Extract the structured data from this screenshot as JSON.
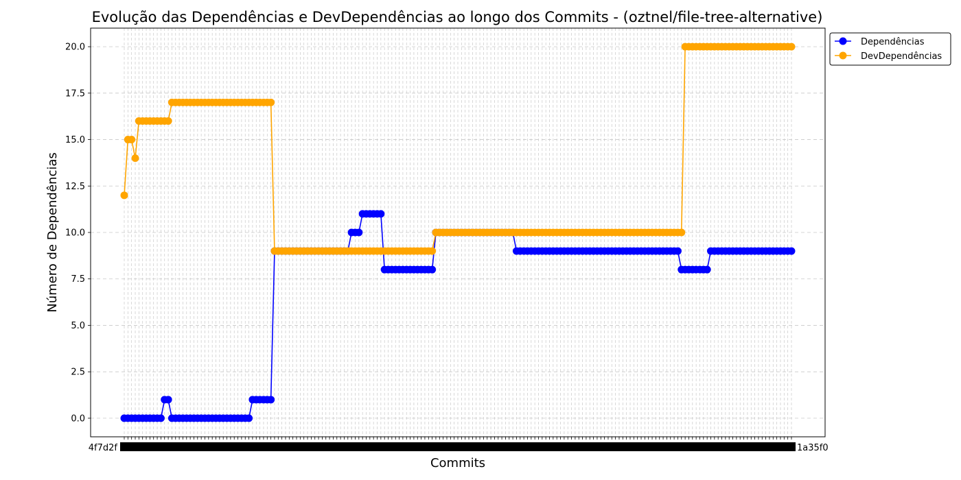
{
  "chart_data": {
    "type": "line",
    "title": "Evolução das Dependências e DevDependências ao longo dos Commits - (oztnel/file-tree-alternative)",
    "xlabel": "Commits",
    "ylabel": "Número de Dependências",
    "ylim": [
      -1,
      21
    ],
    "yticks": [
      "0.0",
      "2.5",
      "5.0",
      "7.5",
      "10.0",
      "12.5",
      "15.0",
      "17.5",
      "20.0"
    ],
    "grid": true,
    "legend_position": "outside-top-right",
    "n_commits": 183,
    "x_tick_labels_note": "commit hashes overlapping (illegible)",
    "x_tick_first_label": "4f7d2f",
    "x_tick_last_label": "1a35f0",
    "series": [
      {
        "name": "Dependências",
        "color": "#0000ff",
        "segments": [
          [
            0,
            0
          ],
          [
            11,
            1
          ],
          [
            13,
            0
          ],
          [
            35,
            1
          ],
          [
            41,
            9
          ],
          [
            62,
            10
          ],
          [
            65,
            11
          ],
          [
            71,
            8
          ],
          [
            85,
            10
          ],
          [
            107,
            9
          ],
          [
            152,
            8
          ],
          [
            160,
            9
          ],
          [
            182,
            9
          ]
        ]
      },
      {
        "name": "DevDependências",
        "color": "#ffa500",
        "segments": [
          [
            0,
            12
          ],
          [
            1,
            15
          ],
          [
            3,
            14
          ],
          [
            4,
            16
          ],
          [
            13,
            17
          ],
          [
            41,
            9
          ],
          [
            85,
            10
          ],
          [
            153,
            20
          ],
          [
            182,
            20
          ]
        ]
      }
    ]
  }
}
